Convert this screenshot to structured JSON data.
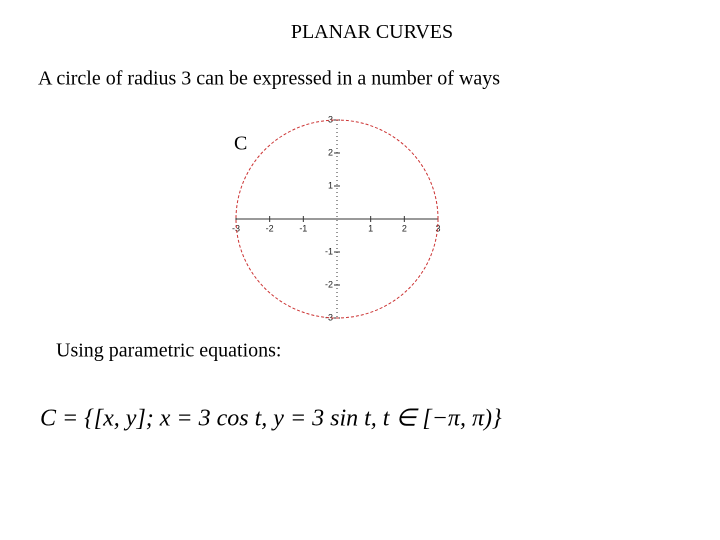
{
  "header": {
    "title": "PLANAR CURVES",
    "subtitle": "A circle of radius 3 can be expressed in a number of ways"
  },
  "chart_data": {
    "type": "circle",
    "label": "C",
    "radius": 3,
    "color": "#cc3333",
    "xlim": [
      -3,
      3
    ],
    "ylim": [
      -3,
      3
    ],
    "xticks": [
      -3,
      -2,
      -1,
      1,
      2,
      3
    ],
    "yticks": [
      3,
      2,
      1,
      -1,
      -2,
      -3
    ]
  },
  "body": {
    "caption": "Using parametric equations:",
    "formula": "C = {[x, y]; x = 3 cos t,   y = 3 sin t,   t ∈ [−π, π)}"
  }
}
